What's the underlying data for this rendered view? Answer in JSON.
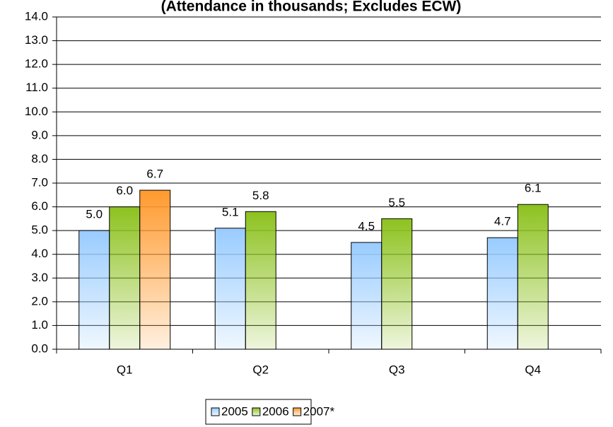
{
  "chart_data": {
    "type": "bar",
    "title": "(Attendance in thousands; Excludes ECW)",
    "categories": [
      "Q1",
      "Q2",
      "Q3",
      "Q4"
    ],
    "series": [
      {
        "name": "2005",
        "color": "#99ccff",
        "values": [
          5.0,
          5.1,
          4.5,
          4.7
        ],
        "value_labels": [
          "5.0",
          "5.1",
          "4.5",
          "4.7"
        ]
      },
      {
        "name": "2006",
        "color": "#8dc21f",
        "values": [
          6.0,
          5.8,
          5.5,
          6.1
        ],
        "value_labels": [
          "6.0",
          "5.8",
          "5.5",
          "6.1"
        ]
      },
      {
        "name": "2007*",
        "color": "#ff9a2e",
        "values": [
          6.7,
          null,
          null,
          null
        ],
        "value_labels": [
          "6.7",
          null,
          null,
          null
        ]
      }
    ],
    "ylim": [
      0,
      14
    ],
    "yticks": [
      {
        "value": 0,
        "label": "0.0"
      },
      {
        "value": 1,
        "label": "1.0"
      },
      {
        "value": 2,
        "label": "2.0"
      },
      {
        "value": 3,
        "label": "3.0"
      },
      {
        "value": 4,
        "label": "4.0"
      },
      {
        "value": 5,
        "label": "5.0"
      },
      {
        "value": 6,
        "label": "6.0"
      },
      {
        "value": 7,
        "label": "7.0"
      },
      {
        "value": 8,
        "label": "8.0"
      },
      {
        "value": 9,
        "label": "9.0"
      },
      {
        "value": 10,
        "label": "10.0"
      },
      {
        "value": 11,
        "label": "11.0"
      },
      {
        "value": 12,
        "label": "12.0"
      },
      {
        "value": 13,
        "label": "13.0"
      },
      {
        "value": 14,
        "label": "14.0"
      }
    ],
    "grid": true,
    "legend": "bottom"
  }
}
